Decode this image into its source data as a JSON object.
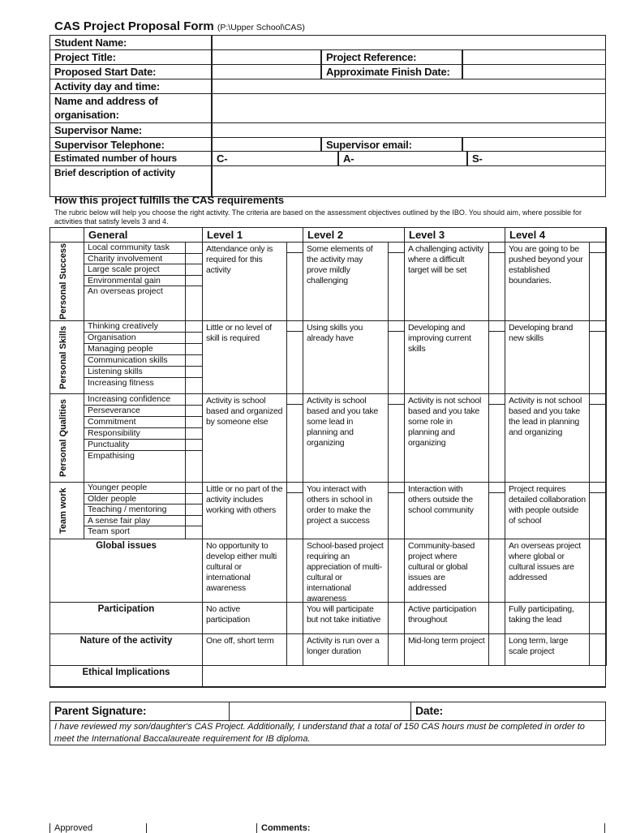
{
  "form": {
    "title": "CAS Project Proposal Form",
    "path": "(P:\\Upper School\\CAS)",
    "fields": {
      "student_name": "Student Name:",
      "project_title": "Project Title:",
      "project_reference": "Project Reference:",
      "start_date": "Proposed Start Date:",
      "finish_date": "Approximate Finish Date:",
      "activity_day": "Activity day and time:",
      "organisation": "Name and address of organisation:",
      "supervisor_name": "Supervisor Name:",
      "supervisor_phone": "Supervisor Telephone:",
      "supervisor_email": "Supervisor email:",
      "hours": "Estimated number of hours",
      "hours_c": "C-",
      "hours_a": "A-",
      "hours_s": "S-",
      "description": "Brief description of activity"
    }
  },
  "requirements": {
    "heading": "How this project fulfills the CAS requirements",
    "note": "The rubric below will help you choose the right activity. The criteria are based on the assessment objectives outlined by the IBO. You should aim, where possible for activities that satisfy levels 3 and 4."
  },
  "rubric": {
    "headers": [
      "General",
      "Level 1",
      "Level 2",
      "Level 3",
      "Level 4"
    ],
    "rows": [
      {
        "side": "Personal Success",
        "items": [
          "Local community task",
          "Charity involvement",
          "Large scale project",
          "Environmental gain",
          "An overseas project"
        ],
        "levels": [
          "Attendance only is required for this activity",
          "Some elements of the activity may prove mildly challenging",
          "A challenging activity where a difficult target will be set",
          "You are going to be pushed beyond your established boundaries."
        ]
      },
      {
        "side": "Personal Skills",
        "items": [
          "Thinking creatively",
          "Organisation",
          "Managing people",
          "Communication skills",
          "Listening skills",
          "Increasing fitness"
        ],
        "levels": [
          "Little or no level of skill is required",
          "Using skills you already have",
          "Developing and improving current skills",
          "Developing brand new skills"
        ]
      },
      {
        "side": "Personal Qualities",
        "items": [
          "Increasing confidence",
          "Perseverance",
          "Commitment",
          "Responsibility",
          "Punctuality",
          "Empathising"
        ],
        "levels": [
          "Activity is school based and organized by someone else",
          "Activity is school based and you take some lead in planning and organizing",
          "Activity is not school based and you take some role in planning and organizing",
          "Activity is not school based and you take the lead in planning and organizing"
        ]
      },
      {
        "side": "Team work",
        "items": [
          "Younger people",
          "Older people",
          "Teaching / mentoring",
          "A sense fair play",
          "Team sport"
        ],
        "levels": [
          "Little or no part of the activity includes working with others",
          "You interact with others in school in order to make the project a success",
          "Interaction with others outside the school community",
          "Project requires detailed collaboration with people outside of school"
        ]
      },
      {
        "label": "Global issues",
        "levels": [
          "No opportunity to develop either multi cultural or international awareness",
          "School-based project requiring an appreciation of multi-cultural or international awareness",
          "Community-based project where cultural or global issues are addressed",
          "An overseas project where global or cultural issues are addressed"
        ]
      },
      {
        "label": "Participation",
        "levels": [
          "No active participation",
          "You will participate but not take initiative",
          "Active participation throughout",
          "Fully participating, taking the lead"
        ]
      },
      {
        "label": "Nature of the activity",
        "levels": [
          "One off, short term",
          "Activity is run over a longer duration",
          "Mid-long term project",
          "Long term, large scale project"
        ]
      },
      {
        "label": "Ethical Implications"
      }
    ]
  },
  "parent": {
    "signature": "Parent Signature:",
    "date": "Date:",
    "statement": "I have reviewed my son/daughter's CAS Project. Additionally, I understand that a total of 150 CAS hours must be completed in order to meet the International Baccalaureate requirement for IB diploma."
  },
  "approval": {
    "approved": "Approved",
    "comments": "Comments:"
  }
}
